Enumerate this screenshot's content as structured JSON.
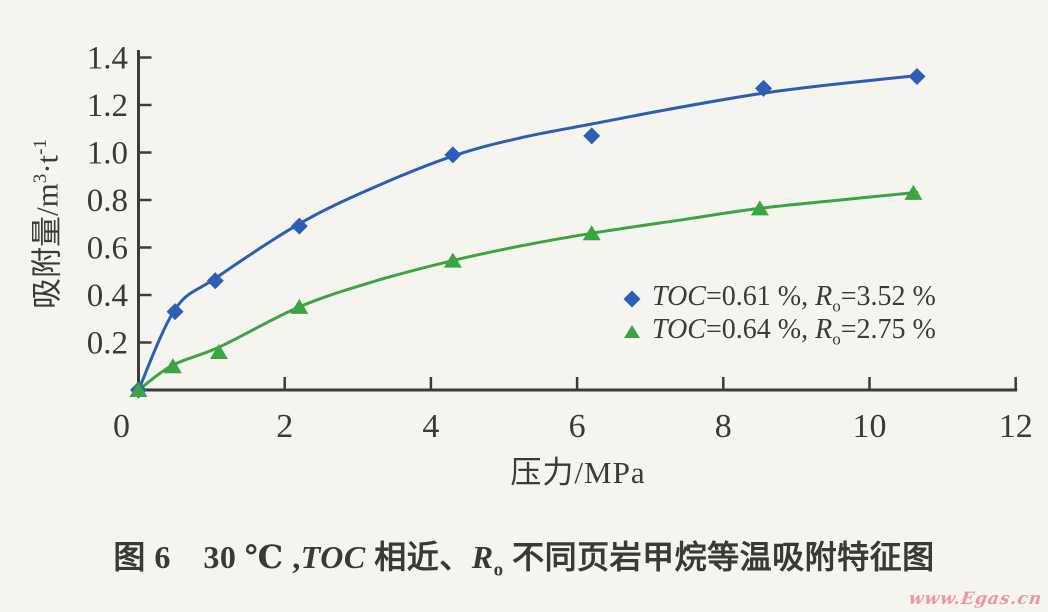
{
  "figure": {
    "caption": {
      "prefix": "图 6　30 ℃ ,",
      "toc": "TOC",
      "mid": " 相近、",
      "r": "R",
      "r_sub": "o",
      "suffix": " 不同页岩甲烷等温吸附特征图"
    },
    "watermark": "www.Egas.cn"
  },
  "chart_data": {
    "type": "scatter",
    "title": "",
    "xlabel": "压力/MPa",
    "ylabel": "吸附量/m³·t⁻¹",
    "ylabel_parts": {
      "prefix": "吸附量/m",
      "sup1": "3",
      "mid": "·t",
      "sup2": "-1"
    },
    "xlim": [
      0,
      12
    ],
    "ylim": [
      0,
      1.4
    ],
    "x_ticks": [
      0,
      2,
      4,
      6,
      8,
      10,
      12
    ],
    "y_ticks": [
      0.2,
      0.4,
      0.6,
      0.8,
      1.0,
      1.2,
      1.4
    ],
    "grid": false,
    "legend_position": "right-middle",
    "series": [
      {
        "name": "TOC=0.61 %, Ro=3.52 %",
        "marker": "diamond",
        "color": "#2c5fb3",
        "points": [
          [
            0,
            0
          ],
          [
            0.5,
            0.33
          ],
          [
            1.05,
            0.46
          ],
          [
            2.2,
            0.69
          ],
          [
            4.3,
            0.99
          ],
          [
            6.2,
            1.07
          ],
          [
            8.55,
            1.27
          ],
          [
            10.65,
            1.32
          ]
        ],
        "curve": [
          [
            0,
            0
          ],
          [
            0.5,
            0.34
          ],
          [
            1.05,
            0.47
          ],
          [
            2.2,
            0.7
          ],
          [
            3.2,
            0.85
          ],
          [
            4.3,
            0.985
          ],
          [
            5.2,
            1.06
          ],
          [
            6.2,
            1.12
          ],
          [
            7.4,
            1.19
          ],
          [
            8.55,
            1.25
          ],
          [
            9.6,
            1.29
          ],
          [
            10.7,
            1.325
          ]
        ],
        "legend": {
          "toc_label": "TOC",
          "toc_eq": "=0.61 %, ",
          "r_label": "R",
          "r_sub": "o",
          "r_eq": "=3.52 %"
        }
      },
      {
        "name": "TOC=0.64 %, Ro=2.75 %",
        "marker": "triangle",
        "color": "#3ca443",
        "points": [
          [
            0,
            0
          ],
          [
            0.47,
            0.1
          ],
          [
            1.1,
            0.16
          ],
          [
            2.2,
            0.35
          ],
          [
            4.3,
            0.545
          ],
          [
            6.2,
            0.66
          ],
          [
            8.5,
            0.765
          ],
          [
            10.6,
            0.83
          ]
        ],
        "curve": [
          [
            0,
            0
          ],
          [
            0.47,
            0.105
          ],
          [
            1.1,
            0.18
          ],
          [
            2.2,
            0.35
          ],
          [
            3.2,
            0.455
          ],
          [
            4.3,
            0.545
          ],
          [
            5.2,
            0.605
          ],
          [
            6.2,
            0.66
          ],
          [
            7.4,
            0.715
          ],
          [
            8.5,
            0.765
          ],
          [
            9.6,
            0.8
          ],
          [
            10.65,
            0.832
          ]
        ],
        "legend": {
          "toc_label": "TOC",
          "toc_eq": "=0.64 %, ",
          "r_label": "R",
          "r_sub": "o",
          "r_eq": "=2.75 %"
        }
      }
    ],
    "colors": {
      "background": "#f5f4ee",
      "axis": "#3c3c38",
      "text": "#3b3b35",
      "watermark": "#ec96a4"
    }
  }
}
